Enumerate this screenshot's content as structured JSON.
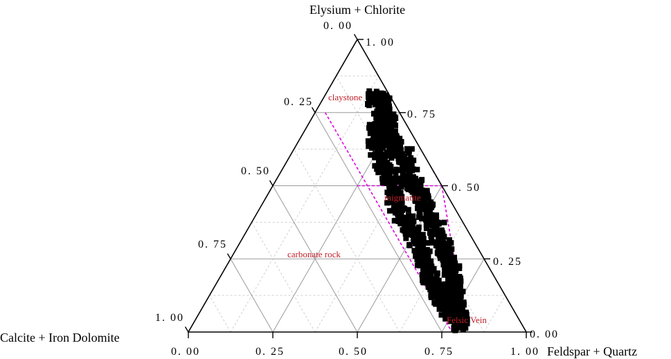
{
  "chart_data": {
    "type": "scatter",
    "subtype": "ternary",
    "title": "",
    "axes": {
      "top": "Elysium + Chlorite",
      "left": "Calcite + Iron Dolomite",
      "right": "Feldspar + Quartz"
    },
    "tick_labels": {
      "top_vertex": "1. 00",
      "top_vertex_left": "0. 00",
      "left_edge": [
        "0. 25",
        "0. 50",
        "0. 75",
        "1. 00"
      ],
      "right_edge": [
        "0. 75",
        "0. 50",
        "0. 25",
        "0. 00"
      ],
      "bottom_edge": [
        "0. 00",
        "0. 25",
        "0. 50",
        "0. 75",
        "1. 00"
      ]
    },
    "grid": true,
    "grid_step": 0.125,
    "major_step": 0.25,
    "regions": [
      {
        "name": "claystone"
      },
      {
        "name": "migmatite"
      },
      {
        "name": "carbonate rock"
      },
      {
        "name": "Felsic Vein"
      }
    ],
    "boundary_lines": [
      {
        "from": {
          "fq": 0.75,
          "ec": 0.25
        },
        "to": {
          "fq": 0.78,
          "ec": 0.0
        }
      },
      {
        "from": {
          "fq": 0.5,
          "ec": 0.5
        },
        "to": {
          "fq": 0.5,
          "ec": 0.5
        }
      },
      {
        "from": {
          "fq": 0.5,
          "ec": 0.5
        },
        "to": {
          "fq": 0.43,
          "ec": 0.57
        }
      },
      {
        "from": {
          "fq": 0.62,
          "ec": 0.36
        },
        "to": {
          "fq": 0.72,
          "ec": 0.16
        }
      }
    ],
    "cluster": {
      "marker": "square",
      "color": "#000000",
      "points": [
        [
          0.15,
          0.8
        ],
        [
          0.18,
          0.79
        ],
        [
          0.19,
          0.77
        ],
        [
          0.22,
          0.74
        ],
        [
          0.2,
          0.74
        ],
        [
          0.24,
          0.71
        ],
        [
          0.21,
          0.69
        ],
        [
          0.25,
          0.69
        ],
        [
          0.27,
          0.66
        ],
        [
          0.23,
          0.65
        ],
        [
          0.29,
          0.64
        ],
        [
          0.25,
          0.62
        ],
        [
          0.31,
          0.61
        ],
        [
          0.34,
          0.6
        ],
        [
          0.28,
          0.58
        ],
        [
          0.3,
          0.56
        ],
        [
          0.36,
          0.57
        ],
        [
          0.33,
          0.53
        ],
        [
          0.39,
          0.53
        ],
        [
          0.36,
          0.5
        ],
        [
          0.42,
          0.5
        ],
        [
          0.38,
          0.46
        ],
        [
          0.45,
          0.47
        ],
        [
          0.4,
          0.43
        ],
        [
          0.48,
          0.44
        ],
        [
          0.43,
          0.4
        ],
        [
          0.5,
          0.41
        ],
        [
          0.46,
          0.37
        ],
        [
          0.53,
          0.38
        ],
        [
          0.49,
          0.34
        ],
        [
          0.56,
          0.35
        ],
        [
          0.52,
          0.31
        ],
        [
          0.58,
          0.32
        ],
        [
          0.55,
          0.28
        ],
        [
          0.61,
          0.29
        ],
        [
          0.57,
          0.25
        ],
        [
          0.63,
          0.26
        ],
        [
          0.6,
          0.22
        ],
        [
          0.66,
          0.23
        ],
        [
          0.62,
          0.19
        ],
        [
          0.68,
          0.2
        ],
        [
          0.65,
          0.16
        ],
        [
          0.7,
          0.17
        ],
        [
          0.67,
          0.14
        ],
        [
          0.72,
          0.14
        ],
        [
          0.69,
          0.12
        ],
        [
          0.74,
          0.11
        ],
        [
          0.71,
          0.1
        ],
        [
          0.75,
          0.09
        ],
        [
          0.73,
          0.07
        ],
        [
          0.76,
          0.06
        ],
        [
          0.78,
          0.05
        ],
        [
          0.79,
          0.03
        ]
      ]
    }
  }
}
